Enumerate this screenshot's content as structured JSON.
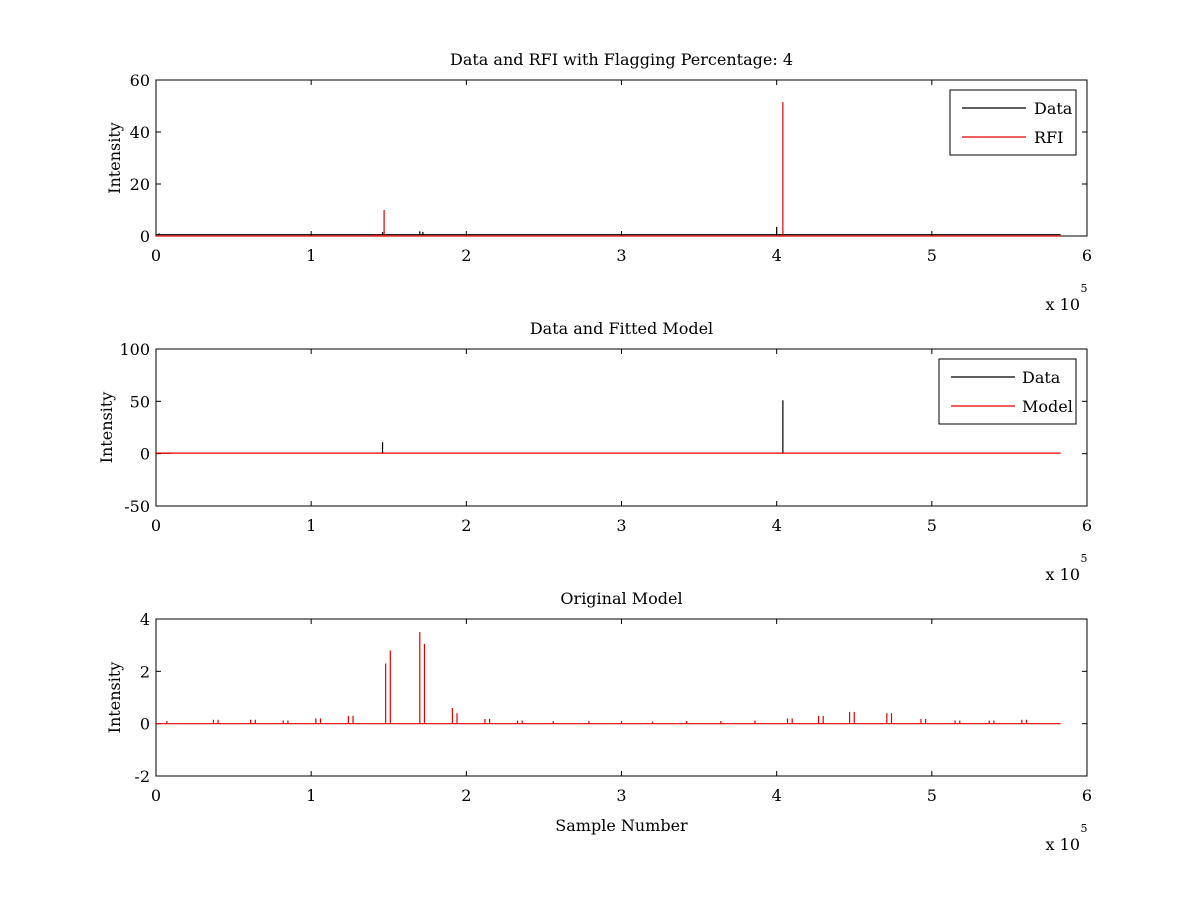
{
  "chart_data": [
    {
      "type": "line",
      "title": "Data and RFI with Flagging Percentage: 4",
      "ylabel": "Intensity",
      "xlabel": "",
      "xlim": [
        0,
        6
      ],
      "ylim": [
        0,
        60
      ],
      "xticks": [
        "0",
        "1",
        "2",
        "3",
        "4",
        "5",
        "6"
      ],
      "yticks": [
        "0",
        "20",
        "40",
        "60"
      ],
      "xscale_label": "x 10",
      "xscale_exp": "5",
      "legend": {
        "placement": "top-right",
        "entries": [
          "Data",
          "RFI"
        ]
      },
      "series": [
        {
          "name": "Data",
          "color": "#000000",
          "baseline": 0.5,
          "x_end": 5.83,
          "spikes": [
            [
              0.02,
              1.0
            ],
            [
              1.46,
              1.5
            ],
            [
              1.7,
              1.8
            ],
            [
              1.72,
              1.6
            ],
            [
              4.0,
              3.5
            ]
          ]
        },
        {
          "name": "RFI",
          "color": "#e00000",
          "baseline": 0.0,
          "x_end": 5.83,
          "spikes": [
            [
              1.42,
              0.8
            ],
            [
              1.47,
              10.0
            ],
            [
              4.04,
              51.5
            ]
          ]
        }
      ]
    },
    {
      "type": "line",
      "title": "Data and Fitted Model",
      "ylabel": "Intensity",
      "xlabel": "",
      "xlim": [
        0,
        6
      ],
      "ylim": [
        -50,
        100
      ],
      "xticks": [
        "0",
        "1",
        "2",
        "3",
        "4",
        "5",
        "6"
      ],
      "yticks": [
        "-50",
        "0",
        "50",
        "100"
      ],
      "xscale_label": "x 10",
      "xscale_exp": "5",
      "legend": {
        "placement": "top-right",
        "entries": [
          "Data",
          "Model"
        ]
      },
      "series": [
        {
          "name": "Data",
          "color": "#000000",
          "baseline": 0.5,
          "x_end": 0.1,
          "spikes": [
            [
              1.46,
              11.0
            ],
            [
              4.04,
              51.0
            ]
          ]
        },
        {
          "name": "Model",
          "color": "#e00000",
          "baseline": 0.5,
          "x_end": 5.83,
          "spikes": []
        }
      ]
    },
    {
      "type": "line",
      "title": "Original Model",
      "ylabel": "Intensity",
      "xlabel": "Sample Number",
      "xlim": [
        0,
        6
      ],
      "ylim": [
        -2,
        4
      ],
      "xticks": [
        "0",
        "1",
        "2",
        "3",
        "4",
        "5",
        "6"
      ],
      "yticks": [
        "-2",
        "0",
        "2",
        "4"
      ],
      "xscale_label": "x 10",
      "xscale_exp": "5",
      "legend": null,
      "series": [
        {
          "name": "",
          "color": "#e00000",
          "baseline": 0.0,
          "x_end": 5.83,
          "spikes": [
            [
              0.07,
              0.1
            ],
            [
              0.37,
              0.15
            ],
            [
              0.4,
              0.15
            ],
            [
              0.61,
              0.15
            ],
            [
              0.64,
              0.15
            ],
            [
              0.82,
              0.12
            ],
            [
              0.85,
              0.12
            ],
            [
              1.03,
              0.2
            ],
            [
              1.06,
              0.2
            ],
            [
              1.24,
              0.3
            ],
            [
              1.27,
              0.3
            ],
            [
              1.48,
              2.3
            ],
            [
              1.51,
              2.8
            ],
            [
              1.7,
              3.5
            ],
            [
              1.73,
              3.05
            ],
            [
              1.91,
              0.6
            ],
            [
              1.94,
              0.4
            ],
            [
              2.12,
              0.18
            ],
            [
              2.15,
              0.18
            ],
            [
              2.33,
              0.12
            ],
            [
              2.36,
              0.12
            ],
            [
              2.56,
              0.1
            ],
            [
              2.79,
              0.1
            ],
            [
              3.0,
              0.1
            ],
            [
              3.2,
              0.08
            ],
            [
              3.42,
              0.1
            ],
            [
              3.64,
              0.1
            ],
            [
              3.86,
              0.12
            ],
            [
              4.07,
              0.2
            ],
            [
              4.1,
              0.2
            ],
            [
              4.27,
              0.3
            ],
            [
              4.3,
              0.3
            ],
            [
              4.47,
              0.45
            ],
            [
              4.5,
              0.45
            ],
            [
              4.71,
              0.4
            ],
            [
              4.74,
              0.4
            ],
            [
              4.93,
              0.18
            ],
            [
              4.96,
              0.18
            ],
            [
              5.15,
              0.12
            ],
            [
              5.18,
              0.12
            ],
            [
              5.37,
              0.12
            ],
            [
              5.4,
              0.12
            ],
            [
              5.58,
              0.15
            ],
            [
              5.61,
              0.15
            ]
          ]
        }
      ]
    }
  ]
}
